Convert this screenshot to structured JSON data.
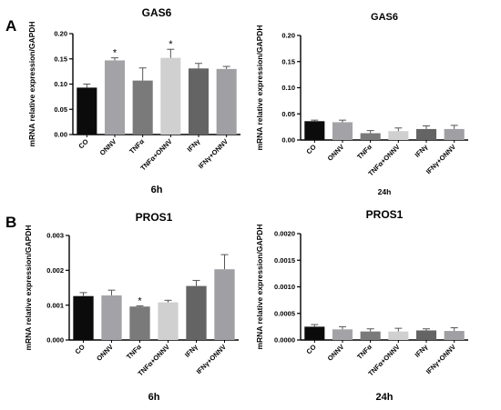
{
  "panels": [
    {
      "letter": "A"
    },
    {
      "letter": "B"
    }
  ],
  "colors": {
    "bars": [
      "#0b0b0b",
      "#a3a3a7",
      "#7a7a7a",
      "#d0d0d0",
      "#646464",
      "#a0a0a4"
    ],
    "axis": "#000000"
  },
  "chart_data": [
    {
      "type": "bar",
      "panel": "A",
      "title": "GAS6",
      "xlabel": "6h",
      "ylabel": "mRNA relative expression/GAPDH",
      "categories": [
        "CO",
        "ONNV",
        "TNFα",
        "TNFα+ONNV",
        "IFNγ",
        "IFNγ+ONNV"
      ],
      "values": [
        0.093,
        0.147,
        0.107,
        0.152,
        0.131,
        0.13
      ],
      "errors": [
        0.007,
        0.005,
        0.025,
        0.017,
        0.01,
        0.005
      ],
      "significance": [
        "",
        "*",
        "",
        "*",
        "",
        ""
      ],
      "ylim": [
        0,
        0.2
      ],
      "yticks": [
        "0.00",
        "0.05",
        "0.10",
        "0.15",
        "0.20"
      ],
      "grid": false
    },
    {
      "type": "bar",
      "panel": "A",
      "title": "GAS6",
      "xlabel": "24h",
      "ylabel": "mRNA relative expression/GAPDH",
      "categories": [
        "CO",
        "ONNV",
        "TNFα",
        "TNFα+ONNV",
        "IFNγ",
        "IFNγ+ONNV"
      ],
      "values": [
        0.036,
        0.034,
        0.013,
        0.017,
        0.021,
        0.021
      ],
      "errors": [
        0.002,
        0.004,
        0.005,
        0.006,
        0.006,
        0.007
      ],
      "significance": [
        "",
        "",
        "",
        "",
        "",
        ""
      ],
      "ylim": [
        0,
        0.2
      ],
      "yticks": [
        "0.00",
        "0.05",
        "0.10",
        "0.15",
        "0.20"
      ],
      "grid": false
    },
    {
      "type": "bar",
      "panel": "B",
      "title": "PROS1",
      "xlabel": "6h",
      "ylabel": "mRNA relative expression/GAPDH",
      "categories": [
        "CO",
        "ONNV",
        "TNFα",
        "TNFα+ONNV",
        "IFNγ",
        "IFNγ+ONNV"
      ],
      "values": [
        0.00126,
        0.00128,
        0.00096,
        0.00108,
        0.00155,
        0.00203
      ],
      "errors": [
        0.0001,
        0.00015,
        2e-05,
        6e-05,
        0.00016,
        0.00042
      ],
      "significance": [
        "",
        "",
        "*",
        "",
        "",
        ""
      ],
      "ylim": [
        0,
        0.003
      ],
      "yticks": [
        "0.000",
        "0.001",
        "0.002",
        "0.003"
      ],
      "grid": false
    },
    {
      "type": "bar",
      "panel": "B",
      "title": "PROS1",
      "xlabel": "24h",
      "ylabel": "mRNA relative expression/GAPDH",
      "categories": [
        "CO",
        "ONNV",
        "TNFα",
        "TNFα+ONNV",
        "IFNγ",
        "IFNγ+ONNV"
      ],
      "values": [
        0.00025,
        0.0002,
        0.00016,
        0.00016,
        0.00018,
        0.00017
      ],
      "errors": [
        4e-05,
        5e-05,
        5e-05,
        6e-05,
        3e-05,
        6e-05
      ],
      "significance": [
        "",
        "",
        "",
        "",
        "",
        ""
      ],
      "ylim": [
        0,
        0.002
      ],
      "yticks": [
        "0.0000",
        "0.0005",
        "0.0010",
        "0.0015",
        "0.0020"
      ],
      "grid": false
    }
  ]
}
